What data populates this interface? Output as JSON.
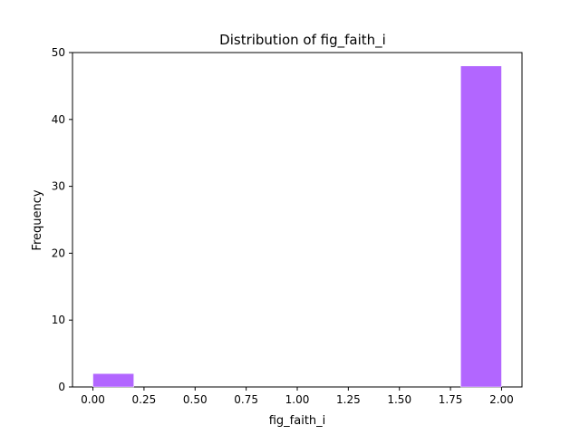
{
  "chart_data": {
    "type": "bar",
    "title": "Distribution of  fig_faith_i",
    "xlabel": "fig_faith_i",
    "ylabel": "Frequency",
    "bins": [
      {
        "x0": 0.0,
        "x1": 0.2,
        "value": 2
      },
      {
        "x0": 1.8,
        "x1": 2.0,
        "value": 48
      }
    ],
    "xlim": [
      -0.1,
      2.1
    ],
    "ylim": [
      0,
      50
    ],
    "xticks": [
      0.0,
      0.25,
      0.5,
      0.75,
      1.0,
      1.25,
      1.5,
      1.75,
      2.0
    ],
    "xtick_labels": [
      "0.00",
      "0.25",
      "0.50",
      "0.75",
      "1.00",
      "1.25",
      "1.50",
      "1.75",
      "2.00"
    ],
    "yticks": [
      0,
      10,
      20,
      30,
      40,
      50
    ],
    "ytick_labels": [
      "0",
      "10",
      "20",
      "30",
      "40",
      "50"
    ],
    "bar_color": "#b266ff",
    "grid": false,
    "legend": "none"
  }
}
